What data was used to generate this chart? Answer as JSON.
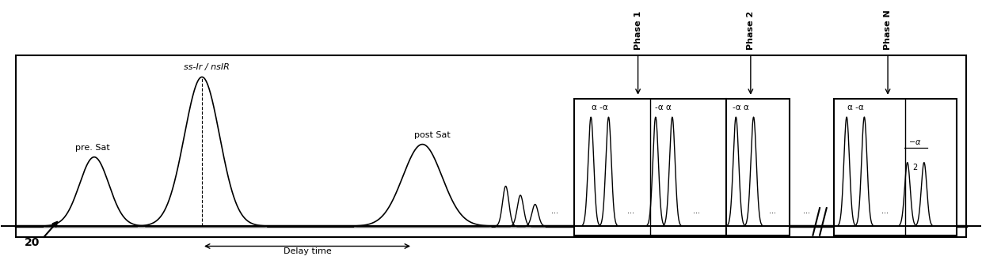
{
  "fig_width": 12.4,
  "fig_height": 3.29,
  "dpi": 100,
  "bg_color": "#ffffff",
  "label_20": "20",
  "label_pre_sat": "pre. Sat",
  "label_ss_ir": "ss-Ir / nsIR",
  "label_post_sat": "post Sat",
  "label_delay": "Delay time",
  "label_phase1": "Phase 1",
  "label_phase2": "Phase 2",
  "label_phaseN": "Phase N",
  "label_alpha1": "α -α",
  "label_alpha2": "-α α",
  "label_alpha3": "α -α",
  "dots": "..."
}
